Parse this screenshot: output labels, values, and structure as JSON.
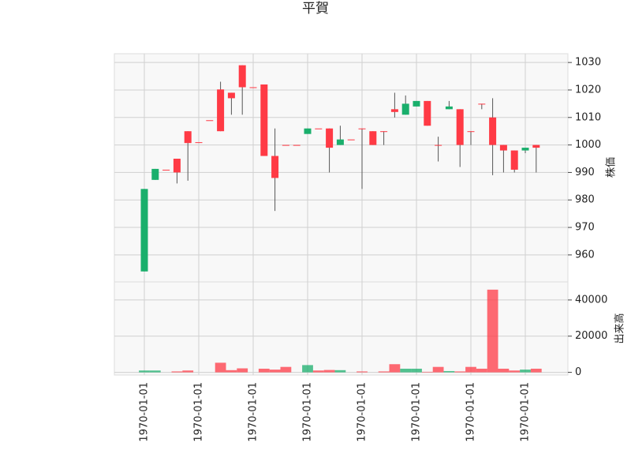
{
  "chart_data": {
    "type": "candlestick",
    "title": "平賀",
    "categories": [
      "1970-01-01",
      null,
      null,
      null,
      null,
      "1970-01-01",
      null,
      null,
      null,
      null,
      "1970-01-01",
      null,
      null,
      null,
      null,
      "1970-01-01",
      null,
      null,
      null,
      null,
      "1970-01-01",
      null,
      null,
      null,
      null,
      "1970-01-01",
      null,
      null,
      null,
      null,
      "1970-01-01",
      null,
      null,
      null,
      null,
      "1970-01-01",
      null
    ],
    "open": [
      954,
      987.3,
      991,
      995,
      1005,
      1001,
      1009,
      1020.2,
      1019,
      1029,
      1021,
      1022,
      996,
      1000,
      1000,
      1004,
      1006,
      1006,
      1000,
      1002,
      1006,
      1005,
      1005,
      1013,
      1011,
      1014,
      1016,
      1000,
      1013,
      1013,
      1005,
      1015,
      1010,
      1000,
      998,
      998,
      1000
    ],
    "high": [
      984,
      991.3,
      991,
      995,
      1005,
      1001,
      1009,
      1023,
      1019,
      1029,
      1021,
      1022,
      1006,
      1000,
      1000,
      1006,
      1006,
      1006,
      1007,
      1002,
      1006,
      1005,
      1005,
      1019,
      1018,
      1016,
      1016,
      1003,
      1016,
      1013,
      1005,
      1015,
      1017,
      1000,
      998,
      999,
      1000
    ],
    "low": [
      954,
      987.3,
      991,
      986,
      987,
      1001,
      1009,
      1005,
      1011,
      1011,
      1021,
      996,
      976,
      1000,
      1000,
      1004,
      1006,
      990,
      1000,
      1002,
      984,
      1000,
      1000,
      1010,
      1011,
      1014,
      1007,
      994,
      1013,
      992,
      1000,
      1013,
      989,
      990,
      990,
      997,
      990
    ],
    "close": [
      984,
      991.3,
      991,
      990,
      1000.7,
      1001,
      1009,
      1005,
      1017,
      1021,
      1021,
      996,
      988,
      1000,
      1000,
      1006,
      1006,
      999,
      1002,
      1002,
      1006,
      1000,
      1005,
      1012,
      1015,
      1016,
      1007,
      1000,
      1014,
      1000,
      1005,
      1015,
      1000,
      998,
      991,
      999,
      999
    ],
    "volume": [
      1000,
      1000,
      0,
      500,
      1000,
      0,
      0,
      5300,
      1200,
      2200,
      0,
      2000,
      1500,
      3000,
      0,
      4000,
      1000,
      1300,
      1200,
      0,
      500,
      0,
      500,
      4500,
      2000,
      2000,
      300,
      3000,
      700,
      500,
      3000,
      2000,
      45700,
      2000,
      1000,
      1500,
      2000
    ],
    "up_color": "#1aaf6c",
    "down_color": "#ff3a45",
    "ylabel": "株価",
    "volume_label": "出来高",
    "ylim": [
      950.2,
      1033.2
    ],
    "yticks": [
      960,
      970,
      980,
      990,
      1000,
      1010,
      1020,
      1030
    ],
    "volume_ylim": [
      -1500,
      50000
    ],
    "volume_yticks": [
      0,
      20000,
      40000
    ],
    "grid": true
  }
}
